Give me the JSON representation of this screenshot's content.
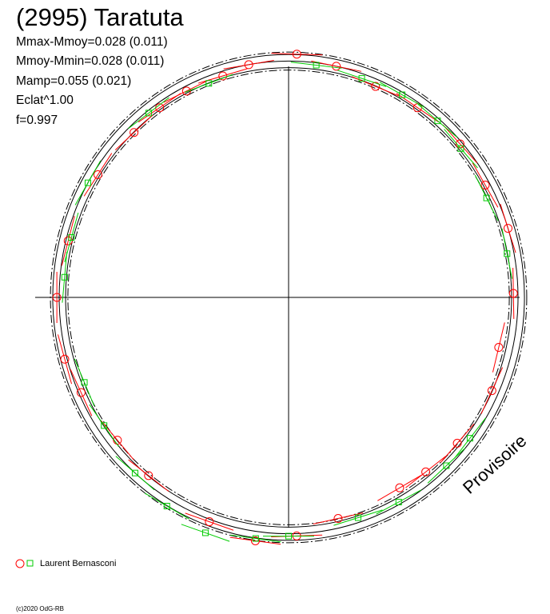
{
  "title": "(2995) Taratuta",
  "stats": [
    "Mmax-Mmoy=0.028 (0.011)",
    "Mmoy-Mmin=0.028 (0.011)",
    "Mamp=0.055 (0.021)",
    "Eclat^1.00",
    "f=0.997"
  ],
  "watermark": "Provisoire",
  "legend_label": "Laurent Bernasconi",
  "copyright": "(c)2020 OdG-RB",
  "colors": {
    "series_red": "#ff0000",
    "series_green": "#00cc00",
    "axes": "#000000"
  },
  "chart_data": {
    "type": "scatter",
    "subtype": "polar-lightcurve",
    "axes": "crosshair through centre",
    "grid": false,
    "mean_magnitude_circle": 1.0,
    "envelope_circles": [
      0.972,
      1.028
    ],
    "legend_position": "bottom-left",
    "series": [
      {
        "name": "Laurent Bernasconi",
        "marker": "circle",
        "color": "#ff0000",
        "points": [
          {
            "angle": 2,
            "r": 1.03
          },
          {
            "angle": 12,
            "r": 1.0
          },
          {
            "angle": 23,
            "r": 0.97
          },
          {
            "angle": 35,
            "r": 0.98
          },
          {
            "angle": 49,
            "r": 0.99
          },
          {
            "angle": 61,
            "r": 0.98
          },
          {
            "angle": 73,
            "r": 1.0
          },
          {
            "angle": 89,
            "r": 0.98
          },
          {
            "angle": 103,
            "r": 0.94
          },
          {
            "angle": 114,
            "r": 0.97
          },
          {
            "angle": 130,
            "r": 0.96
          },
          {
            "angle": 141,
            "r": 0.95
          },
          {
            "angle": 149,
            "r": 0.94
          },
          {
            "angle": 167,
            "r": 0.96
          },
          {
            "angle": 178,
            "r": 1.01
          },
          {
            "angle": 188,
            "r": 1.04
          },
          {
            "angle": 200,
            "r": 1.01
          },
          {
            "angle": 219,
            "r": 0.97
          },
          {
            "angle": 231,
            "r": 0.96
          },
          {
            "angle": 246,
            "r": 0.99
          },
          {
            "angle": 255,
            "r": 1.01
          },
          {
            "angle": 270,
            "r": 1.01
          },
          {
            "angle": 284,
            "r": 0.99
          },
          {
            "angle": 302,
            "r": 0.98
          },
          {
            "angle": 316,
            "r": 0.97
          },
          {
            "angle": 325,
            "r": 0.98
          },
          {
            "angle": 333,
            "r": 0.98
          },
          {
            "angle": 343,
            "r": 0.98
          },
          {
            "angle": 350,
            "r": 1.0
          }
        ]
      },
      {
        "name": "Laurent Bernasconi",
        "marker": "square",
        "color": "#00cc00",
        "points": [
          {
            "angle": 7,
            "r": 0.99
          },
          {
            "angle": 19,
            "r": 0.98
          },
          {
            "angle": 30,
            "r": 0.99
          },
          {
            "angle": 41,
            "r": 0.99
          },
          {
            "angle": 50,
            "r": 0.98
          },
          {
            "angle": 64,
            "r": 0.96
          },
          {
            "angle": 79,
            "r": 0.97
          },
          {
            "angle": 127,
            "r": 0.99
          },
          {
            "angle": 136,
            "r": 0.99
          },
          {
            "angle": 151,
            "r": 0.99
          },
          {
            "angle": 162,
            "r": 0.98
          },
          {
            "angle": 180,
            "r": 1.01
          },
          {
            "angle": 188,
            "r": 1.03
          },
          {
            "angle": 200,
            "r": 1.06
          },
          {
            "angle": 211,
            "r": 1.03
          },
          {
            "angle": 222,
            "r": 1.0
          },
          {
            "angle": 236,
            "r": 0.97
          },
          {
            "angle": 248,
            "r": 0.96
          },
          {
            "angle": 275,
            "r": 0.98
          },
          {
            "angle": 285,
            "r": 0.98
          },
          {
            "angle": 299,
            "r": 1.0
          },
          {
            "angle": 322,
            "r": 0.99
          },
          {
            "angle": 339,
            "r": 0.97
          }
        ]
      }
    ]
  }
}
